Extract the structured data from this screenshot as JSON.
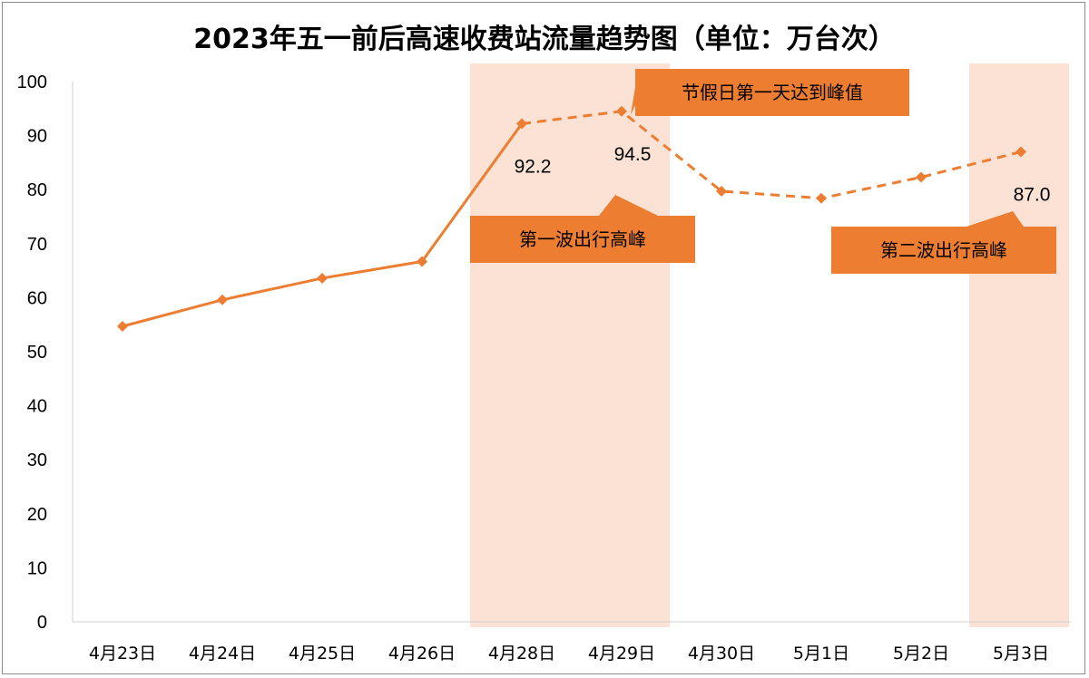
{
  "chart_data": {
    "type": "line",
    "title": "2023年五一前后高速收费站流量趋势图（单位：万台次）",
    "xlabel": "",
    "ylabel": "",
    "ylim": [
      0,
      100
    ],
    "yticks": [
      0,
      10,
      20,
      30,
      40,
      50,
      60,
      70,
      80,
      90,
      100
    ],
    "categories": [
      "4月23日",
      "4月24日",
      "4月25日",
      "4月26日",
      "4月28日",
      "4月29日",
      "4月30日",
      "5月1日",
      "5月2日",
      "5月3日"
    ],
    "values": [
      54.7,
      59.6,
      63.6,
      66.7,
      92.2,
      94.5,
      79.7,
      78.4,
      82.3,
      87.0
    ],
    "solid_segment_end_index": 4,
    "dashed_segment_start_index": 4,
    "data_labels": [
      {
        "index": 4,
        "text": "92.2"
      },
      {
        "index": 5,
        "text": "94.5"
      },
      {
        "index": 9,
        "text": "87.0"
      }
    ],
    "highlight_bands": [
      {
        "from_index": 4,
        "to_index": 5
      },
      {
        "from_index": 9,
        "to_index": 9
      }
    ],
    "annotations": [
      {
        "text": "节假日第一天达到峰值",
        "anchor_index": 5
      },
      {
        "text": "第一波出行高峰",
        "anchor_index": 4
      },
      {
        "text": "第二波出行高峰",
        "anchor_index": 9
      }
    ],
    "grid": false,
    "legend": "none",
    "colors": {
      "line": "#ED7D31",
      "band": "#FBE2D5",
      "callout": "#ED7D31"
    }
  }
}
